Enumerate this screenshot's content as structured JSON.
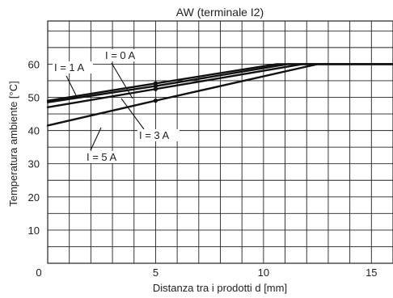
{
  "chart_data": {
    "type": "line",
    "title": "AW (terminale I2)",
    "xlabel": "Distanza tra i prodotti d [mm]",
    "ylabel": "Temperatura ambiente [°C]",
    "xlim": [
      0,
      16
    ],
    "ylim": [
      0,
      73
    ],
    "x_ticks": [
      "0",
      "5",
      "10",
      "15"
    ],
    "y_ticks": [
      "10",
      "20",
      "30",
      "40",
      "50",
      "60"
    ],
    "grid": true,
    "series": [
      {
        "name": "I = 0 A",
        "x": [
          0,
          5,
          10.6,
          16
        ],
        "y": [
          49,
          54.2,
          60,
          60
        ]
      },
      {
        "name": "I = 1 A",
        "x": [
          0,
          5,
          11.1,
          16
        ],
        "y": [
          48.5,
          53.4,
          60,
          60
        ]
      },
      {
        "name": "I = 3 A",
        "x": [
          0,
          5,
          11.8,
          16
        ],
        "y": [
          47,
          52.5,
          60,
          60
        ]
      },
      {
        "name": "I = 5 A",
        "x": [
          0,
          5,
          12.5,
          16
        ],
        "y": [
          41.5,
          49,
          60,
          60
        ]
      }
    ],
    "annotations": [
      {
        "label": "I = 1 A",
        "series": "I = 1 A"
      },
      {
        "label": "I = 0 A",
        "series": "I = 0 A"
      },
      {
        "label": "I = 3 A",
        "series": "I = 3 A"
      },
      {
        "label": "I = 5 A",
        "series": "I = 5 A"
      }
    ]
  }
}
